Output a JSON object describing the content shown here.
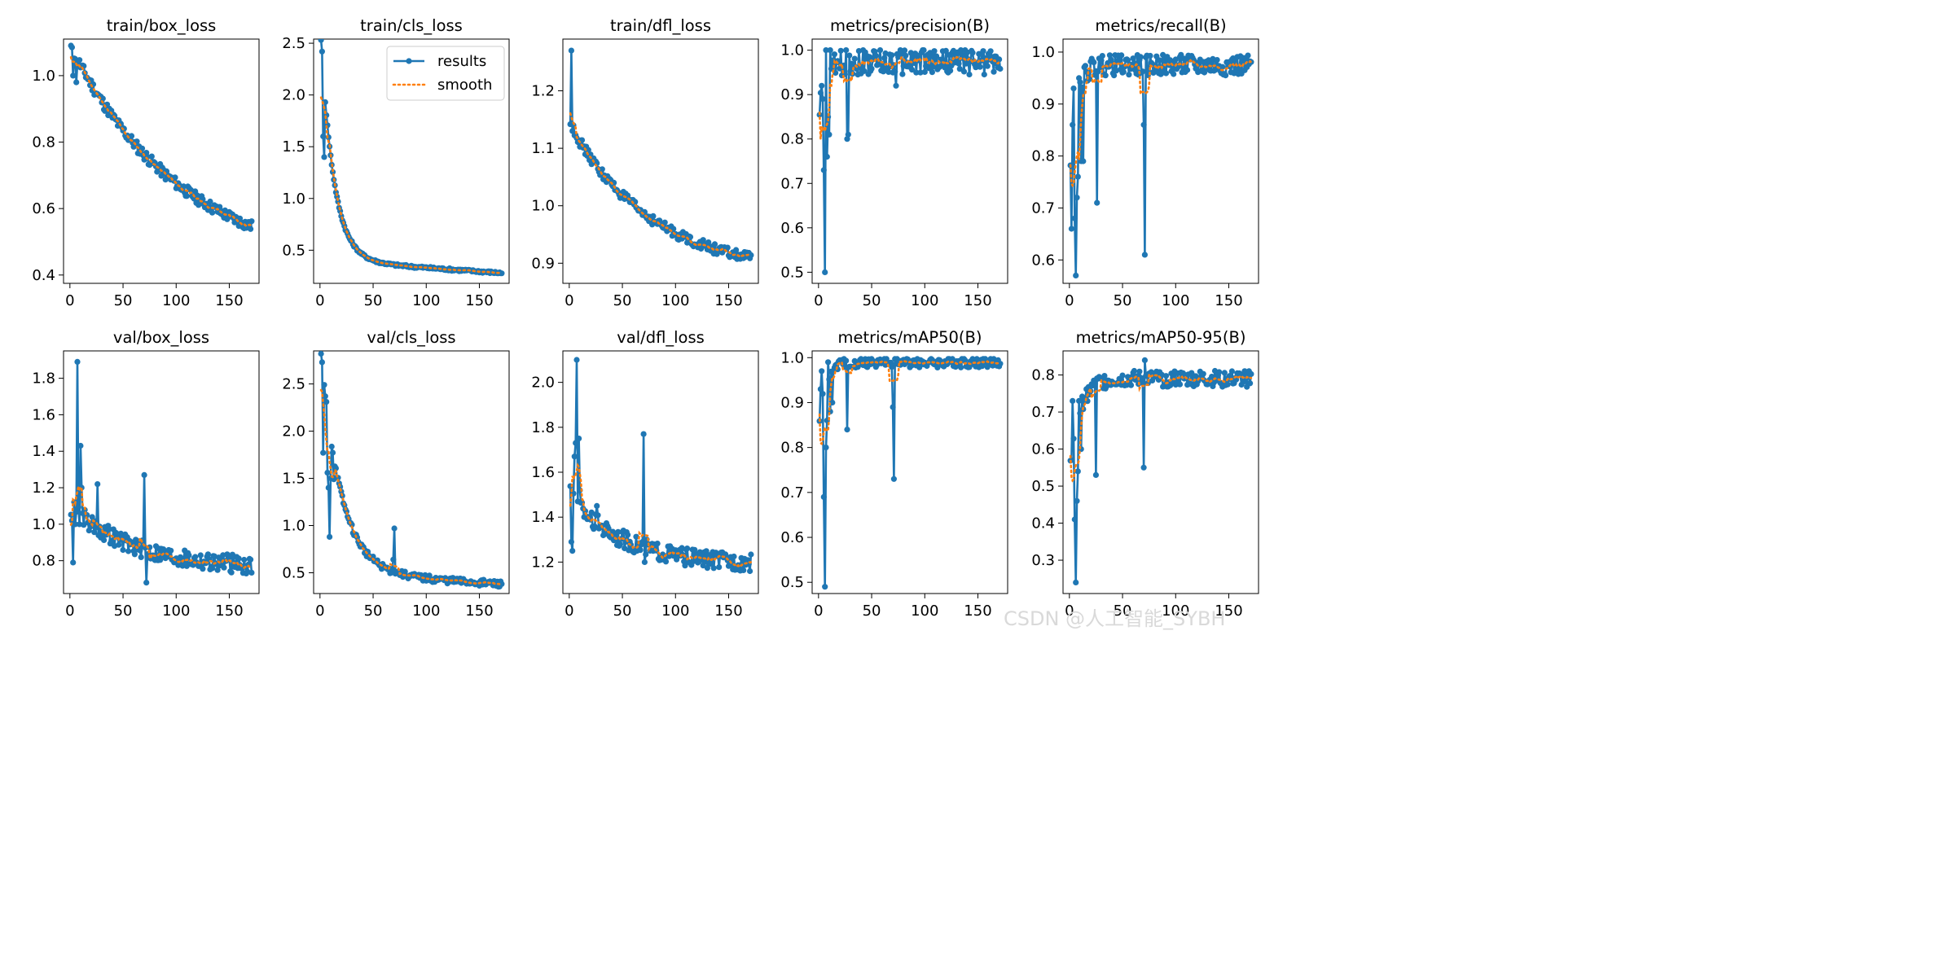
{
  "watermark": "CSDN @人工智能_SYBH",
  "colors": {
    "results": "#1f77b4",
    "smooth": "#ff7f0e"
  },
  "legend": {
    "results": "results",
    "smooth": "smooth",
    "location": "upper right of train/cls_loss"
  },
  "chart_data": [
    {
      "type": "line",
      "title": "train/box_loss",
      "xlim": [
        -6,
        178
      ],
      "ylim": [
        0.375,
        1.11
      ],
      "xticks": [
        "0",
        "50",
        "100",
        "150"
      ],
      "yticks": [
        "0.4",
        "0.6",
        "0.8",
        "1.0"
      ],
      "ytick_values": [
        0.4,
        0.6,
        0.8,
        1.0
      ],
      "shape": "decay",
      "start": 1.085,
      "end": 0.41,
      "rate": 1.6,
      "noise": 0.018,
      "n": 170,
      "spikes": [
        [
          1,
          1.085
        ],
        [
          2,
          1.0
        ],
        [
          5,
          0.98
        ]
      ],
      "series": [
        {
          "name": "results"
        },
        {
          "name": "smooth"
        }
      ]
    },
    {
      "type": "line",
      "title": "train/cls_loss",
      "xlim": [
        -6,
        178
      ],
      "ylim": [
        0.18,
        2.54
      ],
      "xticks": [
        "0",
        "50",
        "100",
        "150"
      ],
      "yticks": [
        "0.5",
        "1.0",
        "1.5",
        "2.0",
        "2.5"
      ],
      "ytick_values": [
        0.5,
        1.0,
        1.5,
        2.0,
        2.5
      ],
      "shape": "decay_fast",
      "start": 2.42,
      "end": 0.28,
      "rate": 14,
      "noise": 0.012,
      "n": 170,
      "spikes": [
        [
          1,
          2.42
        ],
        [
          2,
          1.6
        ],
        [
          3,
          1.4
        ]
      ],
      "legend": true,
      "series": [
        {
          "name": "results"
        },
        {
          "name": "smooth"
        }
      ]
    },
    {
      "type": "line",
      "title": "train/dfl_loss",
      "xlim": [
        -6,
        178
      ],
      "ylim": [
        0.865,
        1.29
      ],
      "xticks": [
        "0",
        "50",
        "100",
        "150"
      ],
      "yticks": [
        "0.9",
        "1.0",
        "1.1",
        "1.2"
      ],
      "ytick_values": [
        0.9,
        1.0,
        1.1,
        1.2
      ],
      "shape": "decay",
      "start": 1.14,
      "end": 0.88,
      "rate": 2.2,
      "noise": 0.009,
      "n": 170,
      "spikes": [
        [
          1,
          1.27
        ],
        [
          2,
          1.13
        ],
        [
          3,
          1.14
        ]
      ],
      "series": [
        {
          "name": "results"
        },
        {
          "name": "smooth"
        }
      ]
    },
    {
      "type": "line",
      "title": "metrics/precision(B)",
      "xlim": [
        -6,
        178
      ],
      "ylim": [
        0.475,
        1.025
      ],
      "xticks": [
        "0",
        "50",
        "100",
        "150"
      ],
      "yticks": [
        "0.5",
        "0.6",
        "0.7",
        "0.8",
        "0.9",
        "1.0"
      ],
      "ytick_values": [
        0.5,
        0.6,
        0.7,
        0.8,
        0.9,
        1.0
      ],
      "shape": "rise",
      "start": 0.88,
      "end": 0.975,
      "rate": 4,
      "noise": 0.03,
      "n": 170,
      "cap": 1.0,
      "spikes": [
        [
          2,
          0.92
        ],
        [
          3,
          0.89
        ],
        [
          4,
          0.73
        ],
        [
          5,
          0.5
        ],
        [
          6,
          1.0
        ],
        [
          7,
          0.76
        ],
        [
          8,
          0.85
        ],
        [
          9,
          0.81
        ],
        [
          10,
          1.0
        ],
        [
          26,
          0.8
        ],
        [
          27,
          0.81
        ],
        [
          72,
          0.92
        ]
      ],
      "series": [
        {
          "name": "results"
        },
        {
          "name": "smooth"
        }
      ]
    },
    {
      "type": "line",
      "title": "metrics/recall(B)",
      "xlim": [
        -6,
        178
      ],
      "ylim": [
        0.555,
        1.025
      ],
      "xticks": [
        "0",
        "50",
        "100",
        "150"
      ],
      "yticks": [
        "0.6",
        "0.7",
        "0.8",
        "0.9",
        "1.0"
      ],
      "ytick_values": [
        0.6,
        0.7,
        0.8,
        0.9,
        1.0
      ],
      "shape": "rise",
      "start": 0.78,
      "end": 0.975,
      "rate": 5,
      "noise": 0.02,
      "n": 170,
      "cap": 1.0,
      "spikes": [
        [
          1,
          0.66
        ],
        [
          2,
          0.86
        ],
        [
          3,
          0.93
        ],
        [
          4,
          0.68
        ],
        [
          5,
          0.57
        ],
        [
          6,
          0.72
        ],
        [
          7,
          0.76
        ],
        [
          8,
          0.95
        ],
        [
          10,
          0.79
        ],
        [
          12,
          0.79
        ],
        [
          25,
          0.71
        ],
        [
          69,
          0.86
        ],
        [
          70,
          0.61
        ]
      ],
      "series": [
        {
          "name": "results"
        },
        {
          "name": "smooth"
        }
      ]
    },
    {
      "type": "line",
      "title": "val/box_loss",
      "xlim": [
        -6,
        178
      ],
      "ylim": [
        0.62,
        1.95
      ],
      "xticks": [
        "0",
        "50",
        "100",
        "150"
      ],
      "yticks": [
        "0.8",
        "1.0",
        "1.2",
        "1.4",
        "1.6",
        "1.8"
      ],
      "ytick_values": [
        0.8,
        1.0,
        1.2,
        1.4,
        1.6,
        1.8
      ],
      "shape": "decay",
      "start": 1.1,
      "end": 0.76,
      "rate": 3,
      "noise": 0.05,
      "n": 170,
      "spikes": [
        [
          1,
          1.02
        ],
        [
          2,
          0.79
        ],
        [
          4,
          1.0
        ],
        [
          6,
          1.89
        ],
        [
          8,
          1.0
        ],
        [
          9,
          1.43
        ],
        [
          10,
          1.2
        ],
        [
          25,
          1.22
        ],
        [
          69,
          1.27
        ],
        [
          71,
          0.68
        ]
      ],
      "series": [
        {
          "name": "results"
        },
        {
          "name": "smooth"
        }
      ]
    },
    {
      "type": "line",
      "title": "val/cls_loss",
      "xlim": [
        -6,
        178
      ],
      "ylim": [
        0.28,
        2.85
      ],
      "xticks": [
        "0",
        "50",
        "100",
        "150"
      ],
      "yticks": [
        "0.5",
        "1.0",
        "1.5",
        "2.0",
        "2.5"
      ],
      "ytick_values": [
        0.5,
        1.0,
        1.5,
        2.0,
        2.5
      ],
      "shape": "decay_fast",
      "start": 2.7,
      "end": 0.38,
      "rate": 9,
      "noise": 0.035,
      "n": 170,
      "spikes": [
        [
          1,
          2.73
        ],
        [
          2,
          1.77
        ],
        [
          3,
          2.49
        ],
        [
          4,
          2.37
        ],
        [
          5,
          2.31
        ],
        [
          6,
          1.56
        ],
        [
          7,
          1.4
        ],
        [
          8,
          0.88
        ],
        [
          9,
          1.5
        ],
        [
          12,
          1.49
        ],
        [
          26,
          1.07
        ],
        [
          69,
          0.97
        ],
        [
          68,
          0.64
        ]
      ],
      "series": [
        {
          "name": "results"
        },
        {
          "name": "smooth"
        }
      ]
    },
    {
      "type": "line",
      "title": "val/dfl_loss",
      "xlim": [
        -6,
        178
      ],
      "ylim": [
        1.06,
        2.14
      ],
      "xticks": [
        "0",
        "50",
        "100",
        "150"
      ],
      "yticks": [
        "1.2",
        "1.4",
        "1.6",
        "1.8",
        "2.0"
      ],
      "ytick_values": [
        1.2,
        1.4,
        1.6,
        1.8,
        2.0
      ],
      "shape": "decay",
      "start": 1.5,
      "end": 1.19,
      "rate": 3.5,
      "noise": 0.04,
      "n": 170,
      "spikes": [
        [
          1,
          1.29
        ],
        [
          2,
          1.25
        ],
        [
          4,
          1.67
        ],
        [
          5,
          1.73
        ],
        [
          6,
          2.1
        ],
        [
          7,
          1.47
        ],
        [
          8,
          1.75
        ],
        [
          9,
          1.52
        ],
        [
          25,
          1.45
        ],
        [
          68,
          1.29
        ],
        [
          69,
          1.77
        ],
        [
          70,
          1.2
        ]
      ],
      "series": [
        {
          "name": "results"
        },
        {
          "name": "smooth"
        }
      ]
    },
    {
      "type": "line",
      "title": "metrics/mAP50(B)",
      "xlim": [
        -6,
        178
      ],
      "ylim": [
        0.475,
        1.015
      ],
      "xticks": [
        "0",
        "50",
        "100",
        "150"
      ],
      "yticks": [
        "0.5",
        "0.6",
        "0.7",
        "0.8",
        "0.9",
        "1.0"
      ],
      "ytick_values": [
        0.5,
        0.6,
        0.7,
        0.8,
        0.9,
        1.0
      ],
      "shape": "rise",
      "start": 0.86,
      "end": 0.99,
      "rate": 5,
      "noise": 0.012,
      "n": 170,
      "cap": 0.997,
      "spikes": [
        [
          1,
          0.93
        ],
        [
          2,
          0.97
        ],
        [
          4,
          0.69
        ],
        [
          5,
          0.49
        ],
        [
          6,
          0.8
        ],
        [
          7,
          0.86
        ],
        [
          8,
          0.99
        ],
        [
          10,
          0.88
        ],
        [
          12,
          0.9
        ],
        [
          26,
          0.84
        ],
        [
          69,
          0.89
        ],
        [
          70,
          0.73
        ]
      ],
      "series": [
        {
          "name": "results"
        },
        {
          "name": "smooth"
        }
      ]
    },
    {
      "type": "line",
      "title": "metrics/mAP50-95(B)",
      "xlim": [
        -6,
        178
      ],
      "ylim": [
        0.21,
        0.865
      ],
      "xticks": [
        "0",
        "50",
        "100",
        "150"
      ],
      "yticks": [
        "0.3",
        "0.4",
        "0.5",
        "0.6",
        "0.7",
        "0.8"
      ],
      "ytick_values": [
        0.3,
        0.4,
        0.5,
        0.6,
        0.7,
        0.8
      ],
      "shape": "rise",
      "start": 0.55,
      "end": 0.79,
      "rate": 3.2,
      "noise": 0.022,
      "n": 170,
      "spikes": [
        [
          1,
          0.57
        ],
        [
          2,
          0.73
        ],
        [
          4,
          0.41
        ],
        [
          5,
          0.24
        ],
        [
          6,
          0.46
        ],
        [
          7,
          0.54
        ],
        [
          8,
          0.73
        ],
        [
          10,
          0.6
        ],
        [
          24,
          0.53
        ],
        [
          69,
          0.55
        ],
        [
          70,
          0.84
        ]
      ],
      "series": [
        {
          "name": "results"
        },
        {
          "name": "smooth"
        }
      ]
    }
  ]
}
